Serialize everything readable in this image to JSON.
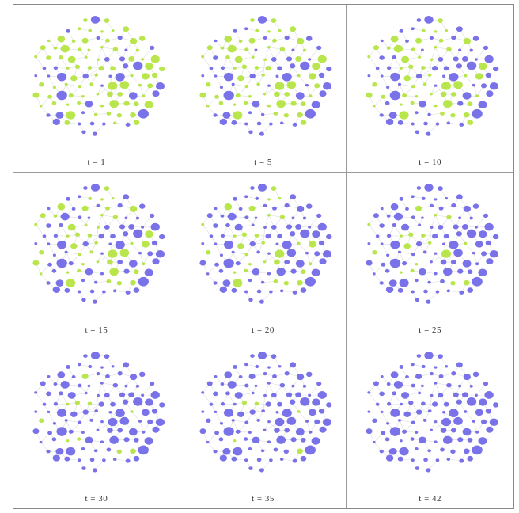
{
  "colors": {
    "purple": "#6b63e6",
    "green": "#b3e33a",
    "edge": "#d6d6d6"
  },
  "panels": [
    {
      "label": "t = 1",
      "green_fraction": 0.7
    },
    {
      "label": "t = 5",
      "green_fraction": 0.6
    },
    {
      "label": "t = 10",
      "green_fraction": 0.52
    },
    {
      "label": "t = 15",
      "green_fraction": 0.42
    },
    {
      "label": "t = 20",
      "green_fraction": 0.3
    },
    {
      "label": "t = 25",
      "green_fraction": 0.22
    },
    {
      "label": "t = 30",
      "green_fraction": 0.12
    },
    {
      "label": "t = 35",
      "green_fraction": 0.07
    },
    {
      "label": "t = 42",
      "green_fraction": 0.0
    }
  ]
}
